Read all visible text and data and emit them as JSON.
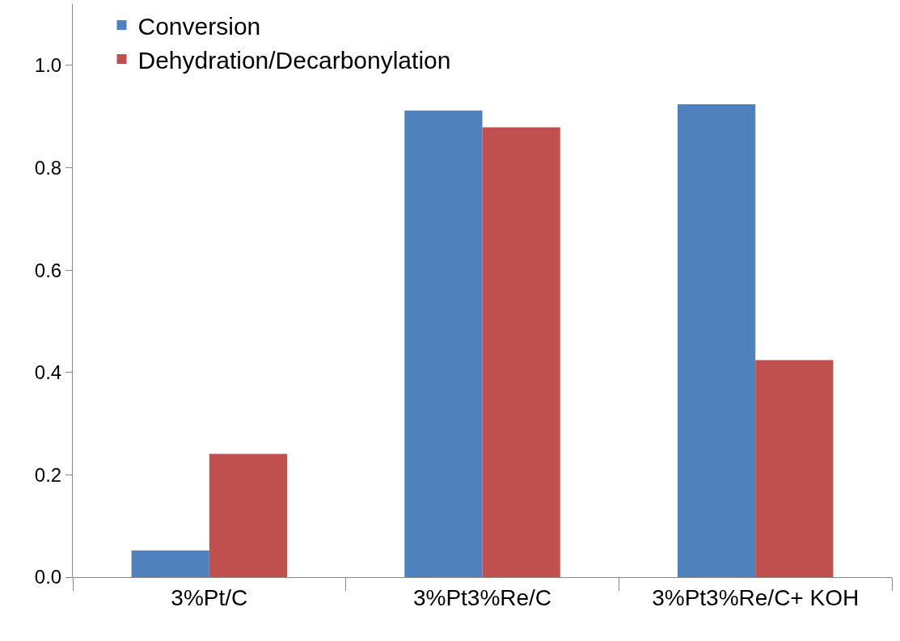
{
  "chart_data": {
    "type": "bar",
    "categories": [
      "3%Pt/C",
      "3%Pt3%Re/C",
      "3%Pt3%Re/C+ KOH"
    ],
    "series": [
      {
        "name": "Conversion",
        "color": "#4f81bd",
        "values": [
          0.052,
          0.912,
          0.924
        ]
      },
      {
        "name": "Dehydration/Decarbonylation",
        "color": "#c0504d",
        "values": [
          0.241,
          0.879,
          0.424
        ]
      }
    ],
    "ylim": [
      0,
      1.12
    ],
    "yticks": [
      {
        "value": 0,
        "label": "0.0"
      },
      {
        "value": 0.2,
        "label": "0.2"
      },
      {
        "value": 0.4,
        "label": "0.4"
      },
      {
        "value": 0.6,
        "label": "0.6"
      },
      {
        "value": 0.8,
        "label": "0.8"
      },
      {
        "value": 1,
        "label": "1.0"
      }
    ],
    "grid": false,
    "legend": "top left"
  }
}
